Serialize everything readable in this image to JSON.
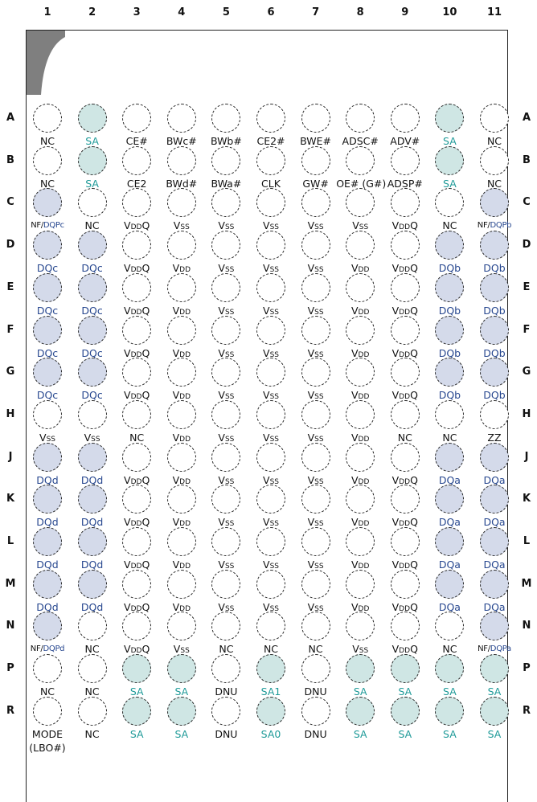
{
  "columns": [
    "1",
    "2",
    "3",
    "4",
    "5",
    "6",
    "7",
    "8",
    "9",
    "10",
    "11"
  ],
  "rows": [
    {
      "label": "A",
      "balls": [
        {
          "t": "NC",
          "c": ""
        },
        {
          "t": "SA",
          "c": "sa"
        },
        {
          "t": "CE#",
          "c": ""
        },
        {
          "t": "BWc#",
          "c": ""
        },
        {
          "t": "BWb#",
          "c": ""
        },
        {
          "t": "CE2#",
          "c": ""
        },
        {
          "t": "BWE#",
          "c": ""
        },
        {
          "t": "ADSC#",
          "c": ""
        },
        {
          "t": "ADV#",
          "c": ""
        },
        {
          "t": "SA",
          "c": "sa"
        },
        {
          "t": "NC",
          "c": ""
        }
      ]
    },
    {
      "label": "B",
      "balls": [
        {
          "t": "NC",
          "c": ""
        },
        {
          "t": "SA",
          "c": "sa"
        },
        {
          "t": "CE2",
          "c": ""
        },
        {
          "t": "BWd#",
          "c": ""
        },
        {
          "t": "BWa#",
          "c": ""
        },
        {
          "t": "CLK",
          "c": ""
        },
        {
          "t": "GW#",
          "c": ""
        },
        {
          "t": "OE# (G#)",
          "c": ""
        },
        {
          "t": "ADSP#",
          "c": ""
        },
        {
          "t": "SA",
          "c": "sa"
        },
        {
          "t": "NC",
          "c": ""
        }
      ]
    },
    {
      "label": "C",
      "balls": [
        {
          "t": "NF/",
          "t2": "DQPc",
          "c": "mix",
          "bc": "dq"
        },
        {
          "t": "NC",
          "c": ""
        },
        {
          "t": "VDDQ",
          "c": "v",
          "f": "dq"
        },
        {
          "t": "VSS",
          "c": "v",
          "f": "ss"
        },
        {
          "t": "VSS",
          "c": "v",
          "f": "ss"
        },
        {
          "t": "VSS",
          "c": "v",
          "f": "ss"
        },
        {
          "t": "VSS",
          "c": "v",
          "f": "ss"
        },
        {
          "t": "VSS",
          "c": "v",
          "f": "ss"
        },
        {
          "t": "VDDQ",
          "c": "v",
          "f": "dq"
        },
        {
          "t": "NC",
          "c": ""
        },
        {
          "t": "NF/",
          "t2": "DQPb",
          "c": "mix",
          "bc": "dq"
        }
      ]
    },
    {
      "label": "D",
      "balls": [
        {
          "t": "DQc",
          "c": "dq"
        },
        {
          "t": "DQc",
          "c": "dq"
        },
        {
          "t": "VDDQ",
          "c": "v",
          "f": "dq"
        },
        {
          "t": "VDD",
          "c": "v",
          "f": "dd"
        },
        {
          "t": "VSS",
          "c": "v",
          "f": "ss"
        },
        {
          "t": "VSS",
          "c": "v",
          "f": "ss"
        },
        {
          "t": "VSS",
          "c": "v",
          "f": "ss"
        },
        {
          "t": "VDD",
          "c": "v",
          "f": "dd"
        },
        {
          "t": "VDDQ",
          "c": "v",
          "f": "dq"
        },
        {
          "t": "DQb",
          "c": "dq"
        },
        {
          "t": "DQb",
          "c": "dq"
        }
      ]
    },
    {
      "label": "E",
      "balls": [
        {
          "t": "DQc",
          "c": "dq"
        },
        {
          "t": "DQc",
          "c": "dq"
        },
        {
          "t": "VDDQ",
          "c": "v",
          "f": "dq"
        },
        {
          "t": "VDD",
          "c": "v",
          "f": "dd"
        },
        {
          "t": "VSS",
          "c": "v",
          "f": "ss"
        },
        {
          "t": "VSS",
          "c": "v",
          "f": "ss"
        },
        {
          "t": "VSS",
          "c": "v",
          "f": "ss"
        },
        {
          "t": "VDD",
          "c": "v",
          "f": "dd"
        },
        {
          "t": "VDDQ",
          "c": "v",
          "f": "dq"
        },
        {
          "t": "DQb",
          "c": "dq"
        },
        {
          "t": "DQb",
          "c": "dq"
        }
      ]
    },
    {
      "label": "F",
      "balls": [
        {
          "t": "DQc",
          "c": "dq"
        },
        {
          "t": "DQc",
          "c": "dq"
        },
        {
          "t": "VDDQ",
          "c": "v",
          "f": "dq"
        },
        {
          "t": "VDD",
          "c": "v",
          "f": "dd"
        },
        {
          "t": "VSS",
          "c": "v",
          "f": "ss"
        },
        {
          "t": "VSS",
          "c": "v",
          "f": "ss"
        },
        {
          "t": "VSS",
          "c": "v",
          "f": "ss"
        },
        {
          "t": "VDD",
          "c": "v",
          "f": "dd"
        },
        {
          "t": "VDDQ",
          "c": "v",
          "f": "dq"
        },
        {
          "t": "DQb",
          "c": "dq"
        },
        {
          "t": "DQb",
          "c": "dq"
        }
      ]
    },
    {
      "label": "G",
      "balls": [
        {
          "t": "DQc",
          "c": "dq"
        },
        {
          "t": "DQc",
          "c": "dq"
        },
        {
          "t": "VDDQ",
          "c": "v",
          "f": "dq"
        },
        {
          "t": "VDD",
          "c": "v",
          "f": "dd"
        },
        {
          "t": "VSS",
          "c": "v",
          "f": "ss"
        },
        {
          "t": "VSS",
          "c": "v",
          "f": "ss"
        },
        {
          "t": "VSS",
          "c": "v",
          "f": "ss"
        },
        {
          "t": "VDD",
          "c": "v",
          "f": "dd"
        },
        {
          "t": "VDDQ",
          "c": "v",
          "f": "dq"
        },
        {
          "t": "DQb",
          "c": "dq"
        },
        {
          "t": "DQb",
          "c": "dq"
        }
      ]
    },
    {
      "label": "H",
      "balls": [
        {
          "t": "VSS",
          "c": "v",
          "f": "ss"
        },
        {
          "t": "VSS",
          "c": "v",
          "f": "ss"
        },
        {
          "t": "NC",
          "c": ""
        },
        {
          "t": "VDD",
          "c": "v",
          "f": "dd"
        },
        {
          "t": "VSS",
          "c": "v",
          "f": "ss"
        },
        {
          "t": "VSS",
          "c": "v",
          "f": "ss"
        },
        {
          "t": "VSS",
          "c": "v",
          "f": "ss"
        },
        {
          "t": "VDD",
          "c": "v",
          "f": "dd"
        },
        {
          "t": "NC",
          "c": ""
        },
        {
          "t": "NC",
          "c": ""
        },
        {
          "t": "ZZ",
          "c": ""
        }
      ]
    },
    {
      "label": "J",
      "balls": [
        {
          "t": "DQd",
          "c": "dq"
        },
        {
          "t": "DQd",
          "c": "dq"
        },
        {
          "t": "VDDQ",
          "c": "v",
          "f": "dq"
        },
        {
          "t": "VDD",
          "c": "v",
          "f": "dd"
        },
        {
          "t": "VSS",
          "c": "v",
          "f": "ss"
        },
        {
          "t": "VSS",
          "c": "v",
          "f": "ss"
        },
        {
          "t": "VSS",
          "c": "v",
          "f": "ss"
        },
        {
          "t": "VDD",
          "c": "v",
          "f": "dd"
        },
        {
          "t": "VDDQ",
          "c": "v",
          "f": "dq"
        },
        {
          "t": "DQa",
          "c": "dq"
        },
        {
          "t": "DQa",
          "c": "dq"
        }
      ]
    },
    {
      "label": "K",
      "balls": [
        {
          "t": "DQd",
          "c": "dq"
        },
        {
          "t": "DQd",
          "c": "dq"
        },
        {
          "t": "VDDQ",
          "c": "v",
          "f": "dq"
        },
        {
          "t": "VDD",
          "c": "v",
          "f": "dd"
        },
        {
          "t": "VSS",
          "c": "v",
          "f": "ss"
        },
        {
          "t": "VSS",
          "c": "v",
          "f": "ss"
        },
        {
          "t": "VSS",
          "c": "v",
          "f": "ss"
        },
        {
          "t": "VDD",
          "c": "v",
          "f": "dd"
        },
        {
          "t": "VDDQ",
          "c": "v",
          "f": "dq"
        },
        {
          "t": "DQa",
          "c": "dq"
        },
        {
          "t": "DQa",
          "c": "dq"
        }
      ]
    },
    {
      "label": "L",
      "balls": [
        {
          "t": "DQd",
          "c": "dq"
        },
        {
          "t": "DQd",
          "c": "dq"
        },
        {
          "t": "VDDQ",
          "c": "v",
          "f": "dq"
        },
        {
          "t": "VDD",
          "c": "v",
          "f": "dd"
        },
        {
          "t": "VSS",
          "c": "v",
          "f": "ss"
        },
        {
          "t": "VSS",
          "c": "v",
          "f": "ss"
        },
        {
          "t": "VSS",
          "c": "v",
          "f": "ss"
        },
        {
          "t": "VDD",
          "c": "v",
          "f": "dd"
        },
        {
          "t": "VDDQ",
          "c": "v",
          "f": "dq"
        },
        {
          "t": "DQa",
          "c": "dq"
        },
        {
          "t": "DQa",
          "c": "dq"
        }
      ]
    },
    {
      "label": "M",
      "balls": [
        {
          "t": "DQd",
          "c": "dq"
        },
        {
          "t": "DQd",
          "c": "dq"
        },
        {
          "t": "VDDQ",
          "c": "v",
          "f": "dq"
        },
        {
          "t": "VDD",
          "c": "v",
          "f": "dd"
        },
        {
          "t": "VSS",
          "c": "v",
          "f": "ss"
        },
        {
          "t": "VSS",
          "c": "v",
          "f": "ss"
        },
        {
          "t": "VSS",
          "c": "v",
          "f": "ss"
        },
        {
          "t": "VDD",
          "c": "v",
          "f": "dd"
        },
        {
          "t": "VDDQ",
          "c": "v",
          "f": "dq"
        },
        {
          "t": "DQa",
          "c": "dq"
        },
        {
          "t": "DQa",
          "c": "dq"
        }
      ]
    },
    {
      "label": "N",
      "balls": [
        {
          "t": "NF/",
          "t2": "DQPd",
          "c": "mix",
          "bc": "dq"
        },
        {
          "t": "NC",
          "c": ""
        },
        {
          "t": "VDDQ",
          "c": "v",
          "f": "dq"
        },
        {
          "t": "VSS",
          "c": "v",
          "f": "ss"
        },
        {
          "t": "NC",
          "c": ""
        },
        {
          "t": "NC",
          "c": ""
        },
        {
          "t": "NC",
          "c": ""
        },
        {
          "t": "VSS",
          "c": "v",
          "f": "ss"
        },
        {
          "t": "VDDQ",
          "c": "v",
          "f": "dq"
        },
        {
          "t": "NC",
          "c": ""
        },
        {
          "t": "NF/",
          "t2": "DQPa",
          "c": "mix",
          "bc": "dq"
        }
      ]
    },
    {
      "label": "P",
      "balls": [
        {
          "t": "NC",
          "c": ""
        },
        {
          "t": "NC",
          "c": ""
        },
        {
          "t": "SA",
          "c": "sa"
        },
        {
          "t": "SA",
          "c": "sa"
        },
        {
          "t": "DNU",
          "c": ""
        },
        {
          "t": "SA1",
          "c": "sa"
        },
        {
          "t": "DNU",
          "c": ""
        },
        {
          "t": "SA",
          "c": "sa"
        },
        {
          "t": "SA",
          "c": "sa"
        },
        {
          "t": "SA",
          "c": "sa"
        },
        {
          "t": "SA",
          "c": "sa"
        }
      ]
    },
    {
      "label": "R",
      "balls": [
        {
          "t": "MODE",
          "t3": "(LBO#)",
          "c": ""
        },
        {
          "t": "NC",
          "c": ""
        },
        {
          "t": "SA",
          "c": "sa"
        },
        {
          "t": "SA",
          "c": "sa"
        },
        {
          "t": "DNU",
          "c": ""
        },
        {
          "t": "SA0",
          "c": "sa"
        },
        {
          "t": "DNU",
          "c": ""
        },
        {
          "t": "SA",
          "c": "sa"
        },
        {
          "t": "SA",
          "c": "sa"
        },
        {
          "t": "SA",
          "c": "sa"
        },
        {
          "t": "SA",
          "c": "sa"
        }
      ]
    }
  ],
  "colors": {
    "sa_fill": "#cfe6e4",
    "dq_fill": "#d4daea",
    "sa_text": "#1e9a98",
    "dq_text": "#27478f"
  }
}
